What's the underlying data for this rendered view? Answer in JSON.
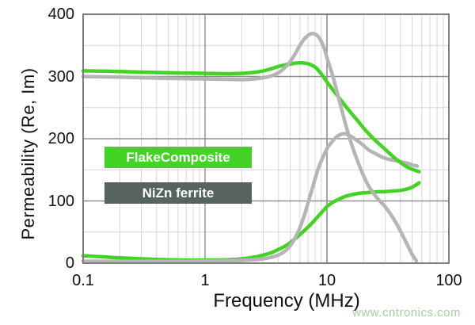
{
  "watermark": {
    "text": "www.cntronics.com",
    "color": "#a7cba7"
  },
  "chart_data": {
    "type": "line",
    "title": "",
    "xlabel": "Frequency (MHz)",
    "ylabel": "Permeability (Re, Im)",
    "x_scale": "log",
    "xlim": [
      0.1,
      100
    ],
    "ylim": [
      0,
      400
    ],
    "x_ticks": [
      0.1,
      1,
      10,
      100
    ],
    "x_tick_labels": [
      "0.1",
      "1",
      "10",
      "100"
    ],
    "y_ticks": [
      0,
      100,
      200,
      300,
      400
    ],
    "y_tick_labels": [
      "0",
      "100",
      "200",
      "300",
      "400"
    ],
    "grid": {
      "major": true,
      "minor": true,
      "major_color": "#8f8f8f",
      "minor_color": "#d7d7d7",
      "border_color": "#7d7d7d"
    },
    "legend_position": "inside-left",
    "legend": [
      {
        "label": "FlakeComposite",
        "bg": "#45d226",
        "text_color": "#ffffff"
      },
      {
        "label": "NiZn ferrite",
        "bg": "#57635f",
        "text_color": "#ffffff"
      }
    ],
    "series": [
      {
        "name": "FlakeComposite Im",
        "color": "#45d226",
        "width": 4.5,
        "x": [
          0.1,
          0.15,
          0.2,
          0.3,
          0.5,
          0.7,
          1,
          1.5,
          2,
          2.5,
          3,
          3.5,
          4,
          4.5,
          5,
          6,
          7,
          8,
          9,
          10,
          11,
          12,
          14,
          16,
          18,
          20,
          25,
          30,
          35,
          40,
          45,
          50,
          53,
          57
        ],
        "y": [
          12,
          10,
          8.5,
          7,
          5.5,
          5,
          5,
          5.5,
          7,
          9.5,
          13,
          17,
          22,
          27,
          33,
          46,
          58,
          70,
          81,
          91,
          97,
          101,
          107,
          110,
          112,
          113,
          114.5,
          115,
          116,
          117,
          119,
          122,
          125,
          129
        ]
      },
      {
        "name": "NiZn ferrite Im",
        "color": "#b5b5b5",
        "width": 4.5,
        "x": [
          0.1,
          0.3,
          0.7,
          1,
          1.5,
          2,
          2.5,
          3,
          3.5,
          4,
          4.5,
          5,
          5.5,
          6,
          6.5,
          7,
          7.5,
          8,
          8.5,
          9,
          10,
          11,
          12,
          13,
          14,
          15,
          16,
          18,
          20,
          22,
          25,
          28,
          32,
          36,
          40,
          45,
          50,
          55
        ],
        "y": [
          3,
          3,
          3,
          3.5,
          4,
          4.5,
          5.5,
          7,
          9.5,
          13,
          19,
          28,
          41,
          57,
          76,
          97,
          117,
          136,
          152,
          165,
          184,
          195,
          203,
          207,
          208,
          206,
          203,
          196,
          189,
          182,
          176,
          171,
          167,
          165,
          163,
          161,
          158,
          156
        ]
      },
      {
        "name": "FlakeComposite Re",
        "color": "#45d226",
        "width": 4.5,
        "x": [
          0.1,
          0.15,
          0.2,
          0.3,
          0.5,
          0.7,
          1,
          1.5,
          2,
          2.5,
          3,
          3.5,
          4,
          4.5,
          5,
          5.5,
          6,
          6.5,
          7,
          8,
          9,
          10,
          12,
          14,
          16,
          18,
          20,
          22,
          25,
          30,
          35,
          40,
          45,
          50,
          57
        ],
        "y": [
          309,
          308.5,
          308,
          307,
          306,
          305.5,
          305,
          304.5,
          305,
          306.5,
          309,
          312.5,
          316,
          318.5,
          320,
          321.5,
          322,
          321.5,
          320.5,
          315,
          304,
          291,
          271,
          254,
          240,
          228,
          217,
          208,
          197,
          183,
          171,
          162,
          155,
          151,
          147
        ]
      },
      {
        "name": "NiZn ferrite Re",
        "color": "#b5b5b5",
        "width": 4.5,
        "x": [
          0.1,
          0.2,
          0.5,
          1,
          1.5,
          2,
          2.5,
          3,
          3.5,
          4,
          4.5,
          5,
          5.5,
          6,
          6.5,
          7,
          7.5,
          8,
          8.5,
          9,
          9.5,
          10,
          11,
          12,
          13,
          14,
          15,
          16,
          17,
          18,
          20,
          22,
          25,
          28,
          30,
          35,
          40,
          45,
          50,
          54
        ],
        "y": [
          300,
          299,
          297,
          296,
          295.5,
          295,
          296,
          298,
          301,
          306,
          314,
          324,
          337,
          350,
          360,
          366,
          369,
          368,
          364,
          356,
          345,
          330,
          305,
          278,
          252,
          228,
          207,
          190,
          175,
          162,
          140,
          124,
          108,
          97,
          91,
          72,
          52,
          32,
          14,
          4
        ]
      }
    ]
  }
}
